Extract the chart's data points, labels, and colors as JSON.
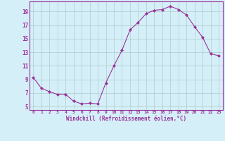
{
  "x": [
    0,
    1,
    2,
    3,
    4,
    5,
    6,
    7,
    8,
    9,
    10,
    11,
    12,
    13,
    14,
    15,
    16,
    17,
    18,
    19,
    20,
    21,
    22,
    23
  ],
  "y": [
    9.3,
    7.7,
    7.2,
    6.8,
    6.8,
    5.8,
    5.4,
    5.5,
    5.4,
    8.5,
    11.0,
    13.3,
    16.3,
    17.4,
    18.7,
    19.2,
    19.3,
    19.8,
    19.3,
    18.5,
    16.8,
    15.2,
    12.8,
    12.5
  ],
  "xlabel": "Windchill (Refroidissement éolien,°C)",
  "ylim": [
    4.5,
    20.5
  ],
  "yticks": [
    5,
    7,
    9,
    11,
    13,
    15,
    17,
    19
  ],
  "xticks": [
    0,
    1,
    2,
    3,
    4,
    5,
    6,
    7,
    8,
    9,
    10,
    11,
    12,
    13,
    14,
    15,
    16,
    17,
    18,
    19,
    20,
    21,
    22,
    23
  ],
  "line_color": "#993399",
  "marker_color": "#993399",
  "bg_color": "#d5eff9",
  "grid_color": "#aacccc",
  "border_color": "#993399",
  "label_color": "#993399",
  "tick_color": "#993399",
  "figsize": [
    3.2,
    2.0
  ],
  "dpi": 100
}
